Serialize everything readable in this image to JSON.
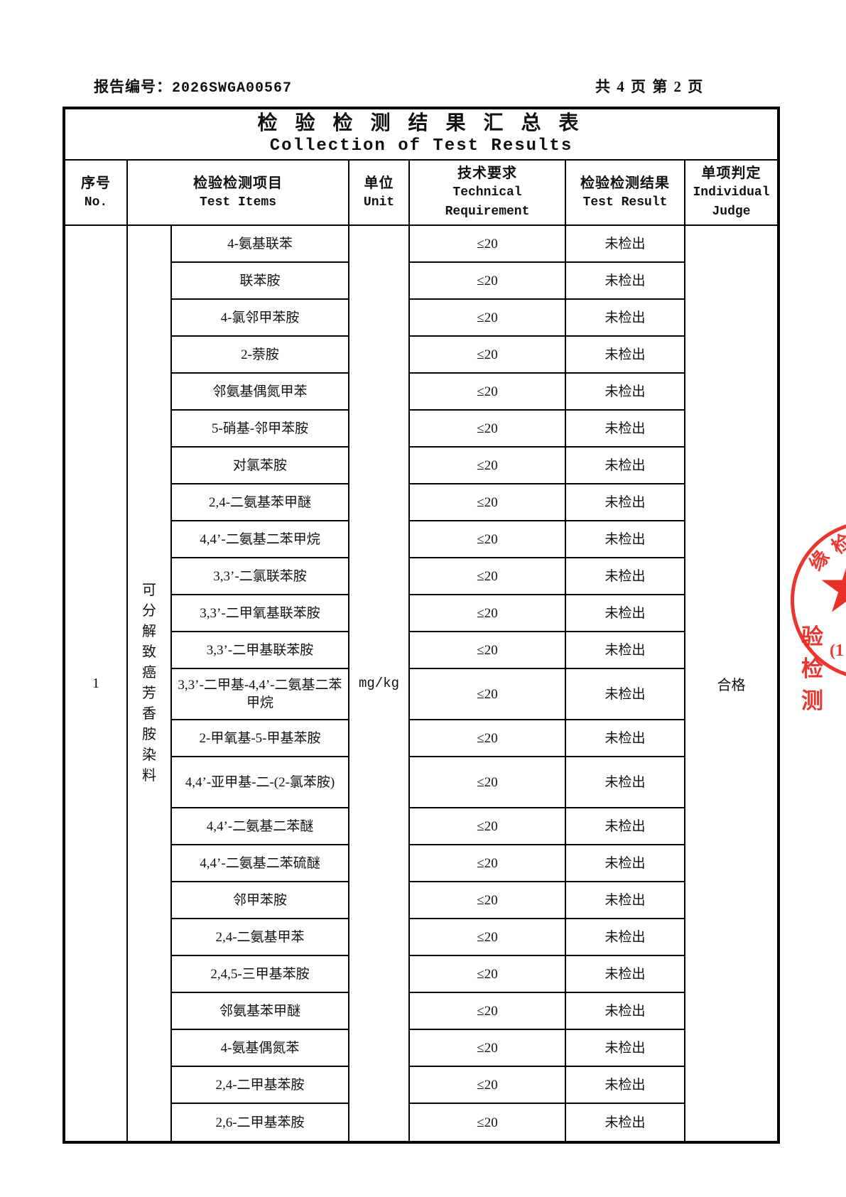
{
  "page_header": {
    "report_no_label": "报告编号：",
    "report_no": "2026SWGA00567",
    "page_info": "共 4 页  第 2 页"
  },
  "table": {
    "title_cn": "检 验 检 测 结 果 汇 总 表",
    "title_en": "Collection of Test Results",
    "columns": {
      "no_cn": "序号",
      "no_en": "No.",
      "items_cn": "检验检测项目",
      "items_en": "Test Items",
      "unit_cn": "单位",
      "unit_en": "Unit",
      "req_cn": "技术要求",
      "req_en1": "Technical",
      "req_en2": "Requirement",
      "result_cn": "检验检测结果",
      "result_en": "Test Result",
      "judge_cn": "单项判定",
      "judge_en1": "Individual",
      "judge_en2": "Judge"
    },
    "group": {
      "no": "1",
      "category": "可分解致癌芳香胺染料",
      "unit": "mg/kg",
      "judge": "合格"
    },
    "rows": [
      {
        "item": "4-氨基联苯",
        "requirement": "≤20",
        "result": "未检出"
      },
      {
        "item": "联苯胺",
        "requirement": "≤20",
        "result": "未检出"
      },
      {
        "item": "4-氯邻甲苯胺",
        "requirement": "≤20",
        "result": "未检出"
      },
      {
        "item": "2-萘胺",
        "requirement": "≤20",
        "result": "未检出"
      },
      {
        "item": "邻氨基偶氮甲苯",
        "requirement": "≤20",
        "result": "未检出"
      },
      {
        "item": "5-硝基-邻甲苯胺",
        "requirement": "≤20",
        "result": "未检出"
      },
      {
        "item": "对氯苯胺",
        "requirement": "≤20",
        "result": "未检出"
      },
      {
        "item": "2,4-二氨基苯甲醚",
        "requirement": "≤20",
        "result": "未检出"
      },
      {
        "item": "4,4’-二氨基二苯甲烷",
        "requirement": "≤20",
        "result": "未检出"
      },
      {
        "item": "3,3’-二氯联苯胺",
        "requirement": "≤20",
        "result": "未检出"
      },
      {
        "item": "3,3’-二甲氧基联苯胺",
        "requirement": "≤20",
        "result": "未检出"
      },
      {
        "item": "3,3’-二甲基联苯胺",
        "requirement": "≤20",
        "result": "未检出"
      },
      {
        "item": "3,3’-二甲基-4,4’-二氨基二苯甲烷",
        "requirement": "≤20",
        "result": "未检出",
        "tall": true
      },
      {
        "item": "2-甲氧基-5-甲基苯胺",
        "requirement": "≤20",
        "result": "未检出"
      },
      {
        "item": "4,4’-亚甲基-二-(2-氯苯胺)",
        "requirement": "≤20",
        "result": "未检出",
        "tall": true
      },
      {
        "item": "4,4’-二氨基二苯醚",
        "requirement": "≤20",
        "result": "未检出"
      },
      {
        "item": "4,4’-二氨基二苯硫醚",
        "requirement": "≤20",
        "result": "未检出"
      },
      {
        "item": "邻甲苯胺",
        "requirement": "≤20",
        "result": "未检出"
      },
      {
        "item": "2,4-二氨基甲苯",
        "requirement": "≤20",
        "result": "未检出"
      },
      {
        "item": "2,4,5-三甲基苯胺",
        "requirement": "≤20",
        "result": "未检出"
      },
      {
        "item": "邻氨基苯甲醚",
        "requirement": "≤20",
        "result": "未检出"
      },
      {
        "item": "4-氨基偶氮苯",
        "requirement": "≤20",
        "result": "未检出"
      },
      {
        "item": "2,4-二甲基苯胺",
        "requirement": "≤20",
        "result": "未检出"
      },
      {
        "item": "2,6-二甲基苯胺",
        "requirement": "≤20",
        "result": "未检出"
      }
    ]
  },
  "stamp": {
    "arc_char_1": "缘",
    "arc_char_2": "检",
    "star": "★",
    "text_bottom": "验检测",
    "text_paren": "(1",
    "color": "#e8251d"
  }
}
